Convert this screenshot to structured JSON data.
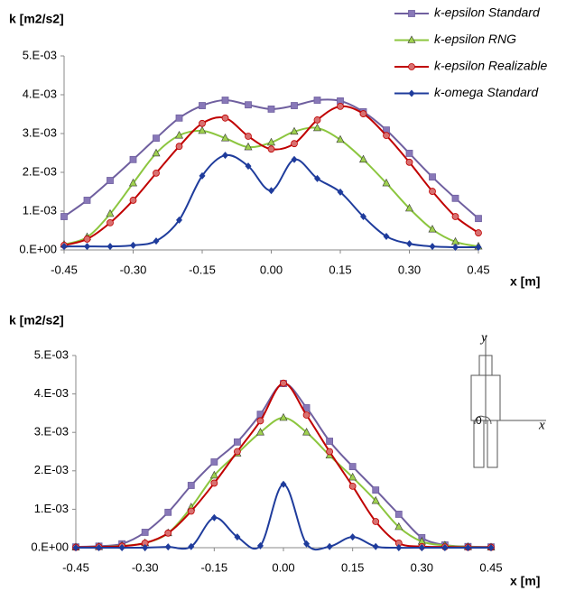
{
  "chart_data": [
    {
      "type": "line",
      "y_label": "k [m2/s2]",
      "x_label": "x [m]",
      "legend": "top-right",
      "grid": false,
      "x": [
        -0.45,
        -0.4,
        -0.35,
        -0.3,
        -0.25,
        -0.2,
        -0.15,
        -0.1,
        -0.05,
        0,
        0.05,
        0.1,
        0.15,
        0.2,
        0.25,
        0.3,
        0.35,
        0.4,
        0.45
      ],
      "xlim": [
        -0.45,
        0.45
      ],
      "xticks": [
        -0.45,
        {
          "value": -0.3,
          "label": "-0.30"
        },
        -0.15,
        {
          "value": 0,
          "label": "0.00"
        },
        0.15,
        {
          "value": 0.3,
          "label": "0.30"
        },
        0.45
      ],
      "ylim": [
        0,
        0.005
      ],
      "yticks": [
        {
          "value": 0,
          "label": "0.E+00"
        },
        {
          "value": 0.001,
          "label": "1.E-03"
        },
        {
          "value": 0.002,
          "label": "2.E-03"
        },
        {
          "value": 0.003,
          "label": "3.E-03"
        },
        {
          "value": 0.004,
          "label": "4.E-03"
        },
        {
          "value": 0.005,
          "label": "5.E-03"
        }
      ],
      "series": [
        {
          "name": "k-epsilon Standard",
          "color": "#6f5f9f",
          "marker": "square",
          "values": [
            0.00086,
            0.00128,
            0.00179,
            0.00233,
            0.00288,
            0.0034,
            0.00372,
            0.00386,
            0.00374,
            0.00363,
            0.00372,
            0.00386,
            0.00384,
            0.00356,
            0.00309,
            0.00249,
            0.00188,
            0.00133,
            0.00081
          ]
        },
        {
          "name": "k-epsilon RNG",
          "color": "#8cc63f",
          "marker": "triangle",
          "values": [
            0.00014,
            0.00033,
            0.00093,
            0.00172,
            0.00249,
            0.00295,
            0.00307,
            0.00288,
            0.00265,
            0.00277,
            0.00305,
            0.00314,
            0.00284,
            0.00233,
            0.00172,
            0.00107,
            0.00053,
            0.00021,
            9e-05
          ]
        },
        {
          "name": "k-epsilon Realizable",
          "color": "#c00000",
          "marker": "circle",
          "values": [
            0.00012,
            0.00028,
            0.0007,
            0.00128,
            0.00198,
            0.00267,
            0.00326,
            0.0034,
            0.00293,
            0.0026,
            0.00274,
            0.00335,
            0.0037,
            0.00351,
            0.00295,
            0.00226,
            0.00151,
            0.00086,
            0.00044
          ]
        },
        {
          "name": "k-omega Standard",
          "color": "#1f3c9c",
          "marker": "diamond",
          "values": [
            9e-05,
            9e-05,
            9e-05,
            0.00012,
            0.00023,
            0.00077,
            0.00191,
            0.00244,
            0.00216,
            0.00153,
            0.00233,
            0.00184,
            0.00149,
            0.00086,
            0.00035,
            0.00016,
            9e-05,
            7e-05,
            7e-05
          ]
        }
      ]
    },
    {
      "type": "line",
      "y_label": "k [m2/s2]",
      "x_label": "x [m]",
      "grid": false,
      "inset": {
        "y_axis": "y",
        "x_axis": "x",
        "origin": "0"
      },
      "x": [
        -0.45,
        -0.4,
        -0.35,
        -0.3,
        -0.25,
        -0.2,
        -0.15,
        -0.1,
        -0.05,
        0,
        0.05,
        0.1,
        0.15,
        0.2,
        0.25,
        0.3,
        0.35,
        0.4,
        0.45
      ],
      "xlim": [
        -0.45,
        0.45
      ],
      "xticks": [
        -0.45,
        {
          "value": -0.3,
          "label": "-0.30"
        },
        -0.15,
        {
          "value": 0,
          "label": "0.00"
        },
        0.15,
        {
          "value": 0.3,
          "label": "0.30"
        },
        0.45
      ],
      "ylim": [
        0,
        0.005
      ],
      "yticks": [
        {
          "value": 0,
          "label": "0.E+00"
        },
        {
          "value": 0.001,
          "label": "1.E-03"
        },
        {
          "value": 0.002,
          "label": "2.E-03"
        },
        {
          "value": 0.003,
          "label": "3.E-03"
        },
        {
          "value": 0.004,
          "label": "4.E-03"
        },
        {
          "value": 0.005,
          "label": "5.E-03"
        }
      ],
      "series": [
        {
          "name": "k-epsilon Standard",
          "color": "#6f5f9f",
          "marker": "square",
          "values": [
            2e-05,
            4e-05,
            0.0001,
            0.0004,
            0.00092,
            0.00162,
            0.00223,
            0.00275,
            0.00347,
            0.00427,
            0.00364,
            0.00277,
            0.00211,
            0.0015,
            0.00087,
            0.00026,
            7e-05,
            3e-05,
            2e-05
          ]
        },
        {
          "name": "k-epsilon RNG",
          "color": "#8cc63f",
          "marker": "triangle",
          "values": [
            1e-05,
            2e-05,
            5e-05,
            0.00012,
            0.00038,
            0.00105,
            0.00188,
            0.00245,
            0.003,
            0.00338,
            0.003,
            0.0024,
            0.00183,
            0.00122,
            0.00054,
            0.00016,
            6e-05,
            2e-05,
            1e-05
          ]
        },
        {
          "name": "k-epsilon Realizable",
          "color": "#c00000",
          "marker": "circle",
          "values": [
            1e-05,
            2e-05,
            4e-05,
            0.00012,
            0.00038,
            0.00095,
            0.00168,
            0.0025,
            0.0033,
            0.00428,
            0.00345,
            0.0025,
            0.0016,
            0.00068,
            0.00012,
            3e-05,
            2e-05,
            1e-05,
            1e-05
          ]
        },
        {
          "name": "k-omega Standard",
          "color": "#1f3c9c",
          "marker": "diamond",
          "values": [
            0,
            0,
            0,
            0,
            2e-05,
            3e-05,
            0.00078,
            0.00028,
            5e-05,
            0.00165,
            0.0001,
            3e-05,
            0.00028,
            3e-05,
            0,
            0,
            0,
            0,
            0
          ]
        }
      ]
    }
  ]
}
